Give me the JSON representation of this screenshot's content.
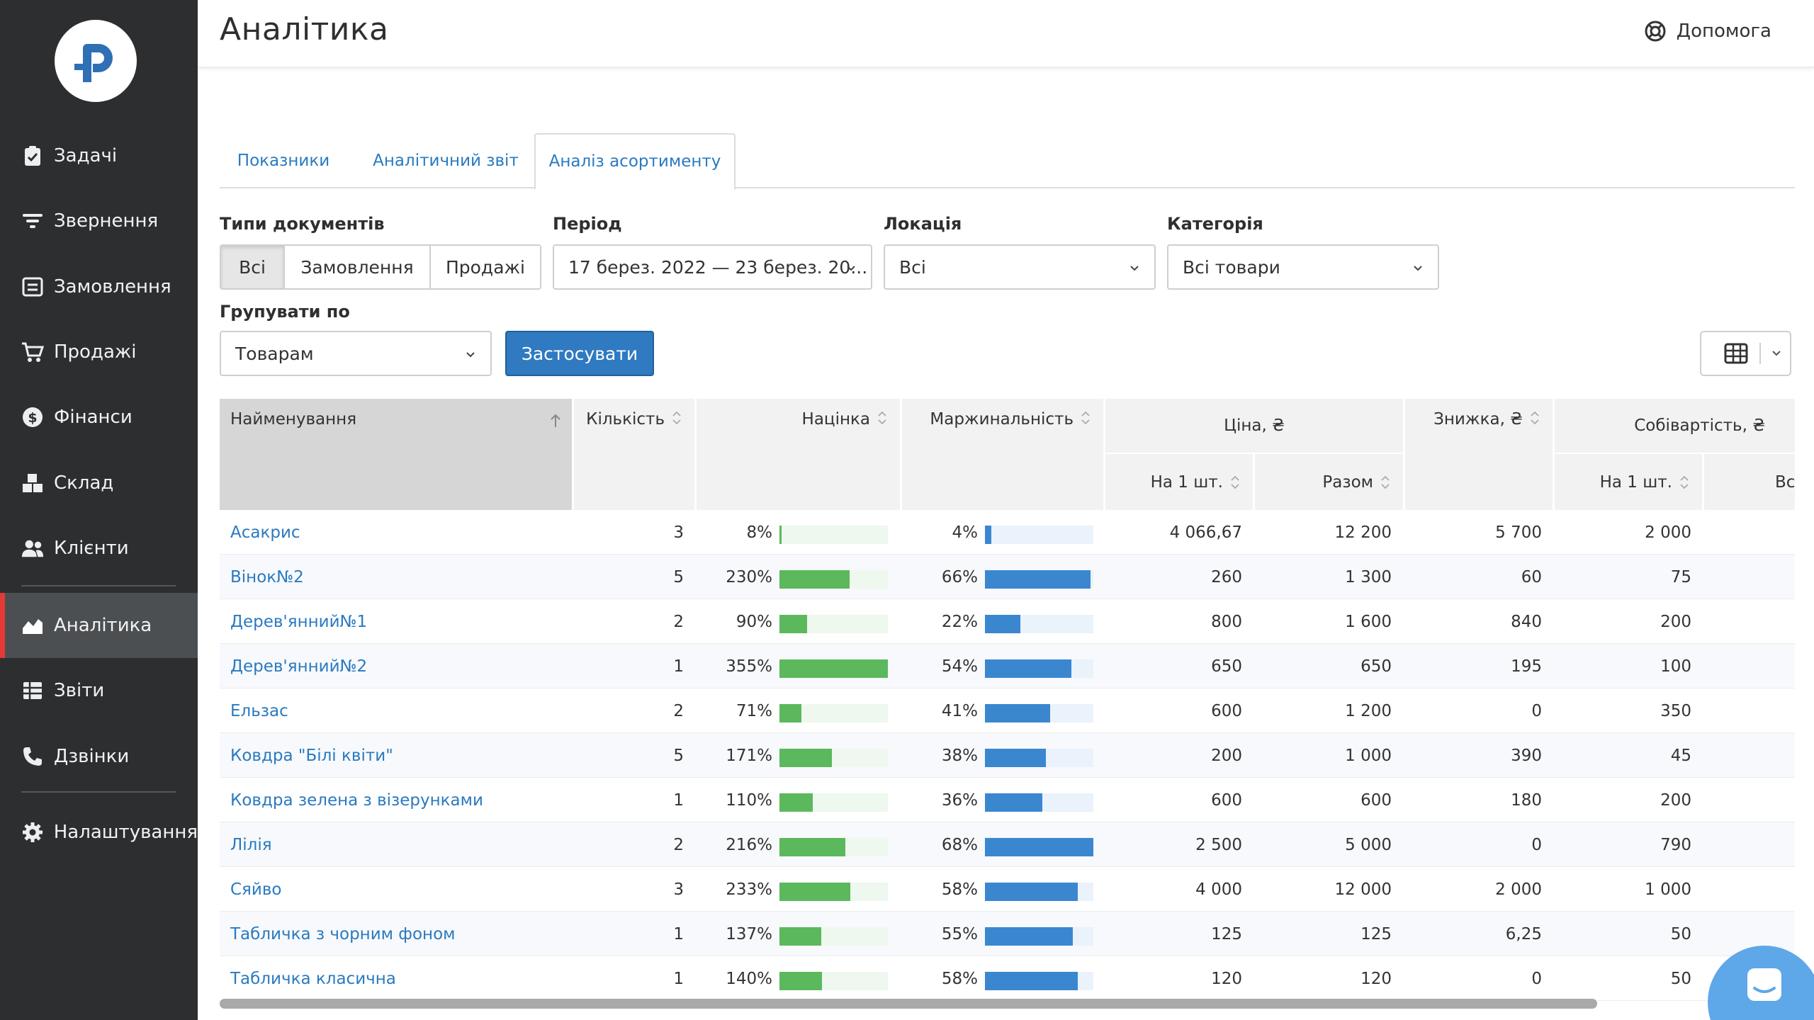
{
  "app": {
    "title": "Аналітика",
    "help_label": "Допомога"
  },
  "sidebar": {
    "items": [
      {
        "label": "Задачі",
        "icon": "clipboard-check-icon"
      },
      {
        "label": "Звернення",
        "icon": "funnel-icon"
      },
      {
        "label": "Замовлення",
        "icon": "order-list-icon"
      },
      {
        "label": "Продажі",
        "icon": "cart-icon"
      },
      {
        "label": "Фінанси",
        "icon": "dollar-coin-icon"
      },
      {
        "label": "Склад",
        "icon": "boxes-icon"
      },
      {
        "label": "Клієнти",
        "icon": "users-icon"
      },
      {
        "label": "Аналітика",
        "icon": "area-chart-icon",
        "active": true
      },
      {
        "label": "Звіти",
        "icon": "table-icon"
      },
      {
        "label": "Дзвінки",
        "icon": "phone-icon"
      },
      {
        "label": "Налаштування",
        "icon": "gear-icon"
      }
    ]
  },
  "tabs": [
    "Показники",
    "Аналітичний звіт",
    "Аналіз асортименту"
  ],
  "active_tab": "Аналіз асортименту",
  "filters": {
    "doc_types": {
      "label": "Типи документів",
      "options": [
        "Всі",
        "Замовлення",
        "Продажі"
      ],
      "selected": "Всі"
    },
    "period": {
      "label": "Період",
      "value": "17 берез. 2022 — 23 берез. 20..."
    },
    "location": {
      "label": "Локація",
      "value": "Всі"
    },
    "category": {
      "label": "Категорія",
      "value": "Всі товари"
    },
    "group_by": {
      "label": "Групувати по",
      "value": "Товарам"
    },
    "apply_label": "Застосувати"
  },
  "table": {
    "headers": {
      "name": "Найменування",
      "qty": "Кількість",
      "markup": "Націнка",
      "margin": "Маржинальність",
      "price": "Ціна, ₴",
      "price_unit": "На 1 шт.",
      "price_total": "Разом",
      "discount": "Знижка, ₴",
      "cost": "Собівартість, ₴",
      "cost_unit": "На 1 шт.",
      "cost_total": "Всь"
    },
    "colors": {
      "markup_bar": "#5cb85c",
      "margin_bar": "#3a87d0",
      "sorted_header": "#d6d6d6"
    },
    "rows": [
      {
        "name": "Асакрис",
        "qty": "3",
        "markup": "8%",
        "markup_val": 8,
        "margin": "4%",
        "margin_val": 4,
        "price_unit": "4 066,67",
        "price_total": "12 200",
        "discount": "5 700",
        "cost_unit": "2 000"
      },
      {
        "name": "Вінок№2",
        "qty": "5",
        "markup": "230%",
        "markup_val": 230,
        "margin": "66%",
        "margin_val": 66,
        "price_unit": "260",
        "price_total": "1 300",
        "discount": "60",
        "cost_unit": "75"
      },
      {
        "name": "Дерев'янний№1",
        "qty": "2",
        "markup": "90%",
        "markup_val": 90,
        "margin": "22%",
        "margin_val": 22,
        "price_unit": "800",
        "price_total": "1 600",
        "discount": "840",
        "cost_unit": "200"
      },
      {
        "name": "Дерев'янний№2",
        "qty": "1",
        "markup": "355%",
        "markup_val": 355,
        "margin": "54%",
        "margin_val": 54,
        "price_unit": "650",
        "price_total": "650",
        "discount": "195",
        "cost_unit": "100"
      },
      {
        "name": "Ельзас",
        "qty": "2",
        "markup": "71%",
        "markup_val": 71,
        "margin": "41%",
        "margin_val": 41,
        "price_unit": "600",
        "price_total": "1 200",
        "discount": "0",
        "cost_unit": "350"
      },
      {
        "name": "Ковдра \"Білі квіти\"",
        "qty": "5",
        "markup": "171%",
        "markup_val": 171,
        "margin": "38%",
        "margin_val": 38,
        "price_unit": "200",
        "price_total": "1 000",
        "discount": "390",
        "cost_unit": "45"
      },
      {
        "name": "Ковдра зелена з візерунками",
        "qty": "1",
        "markup": "110%",
        "markup_val": 110,
        "margin": "36%",
        "margin_val": 36,
        "price_unit": "600",
        "price_total": "600",
        "discount": "180",
        "cost_unit": "200"
      },
      {
        "name": "Лілія",
        "qty": "2",
        "markup": "216%",
        "markup_val": 216,
        "margin": "68%",
        "margin_val": 68,
        "price_unit": "2 500",
        "price_total": "5 000",
        "discount": "0",
        "cost_unit": "790"
      },
      {
        "name": "Сяйво",
        "qty": "3",
        "markup": "233%",
        "markup_val": 233,
        "margin": "58%",
        "margin_val": 58,
        "price_unit": "4 000",
        "price_total": "12 000",
        "discount": "2 000",
        "cost_unit": "1 000"
      },
      {
        "name": "Табличка з чорним фоном",
        "qty": "1",
        "markup": "137%",
        "markup_val": 137,
        "margin": "55%",
        "margin_val": 55,
        "price_unit": "125",
        "price_total": "125",
        "discount": "6,25",
        "cost_unit": "50"
      },
      {
        "name": "Табличка класична",
        "qty": "1",
        "markup": "140%",
        "markup_val": 140,
        "margin": "58%",
        "margin_val": 58,
        "price_unit": "120",
        "price_total": "120",
        "discount": "0",
        "cost_unit": "50"
      }
    ]
  }
}
